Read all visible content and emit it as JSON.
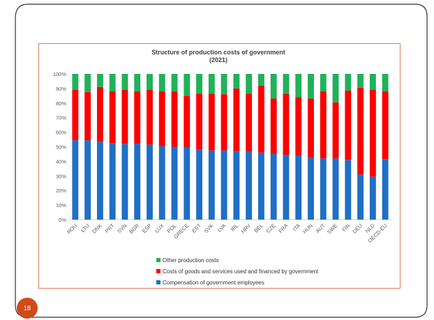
{
  "slide": {
    "page_number": "18"
  },
  "colors": {
    "accent": "#d2491b",
    "chart_border": "#d97f5a"
  },
  "chart_data": {
    "type": "bar",
    "stacked": true,
    "title": "Structure of production costs of government",
    "subtitle": "(2021)",
    "xlabel": "",
    "ylabel": "",
    "ylim": [
      0,
      100
    ],
    "y_ticks": [
      "0%",
      "10%",
      "20%",
      "30%",
      "40%",
      "50%",
      "60%",
      "70%",
      "80%",
      "90%",
      "100%"
    ],
    "grid": false,
    "legend_position": "bottom",
    "categories": [
      "ROU",
      "LTU",
      "DNK",
      "PRT",
      "SVN",
      "BGR",
      "ESP",
      "LUX",
      "POL",
      "GRECE",
      "EST",
      "SVK",
      "LVA",
      "IRL",
      "HRV",
      "BEL",
      "CZE",
      "FRA",
      "ITA",
      "HUN",
      "AUT",
      "SWE",
      "FIN",
      "DEU",
      "NLD",
      "OECD-EU"
    ],
    "series": [
      {
        "name": "Compensation of government employees",
        "color": "#1f6fc5",
        "values": [
          54.5,
          54.5,
          53.5,
          52.5,
          52,
          52,
          51.5,
          50.5,
          50,
          49.5,
          48,
          47.5,
          47.5,
          47,
          46.5,
          46,
          45,
          44.5,
          44,
          42.5,
          42,
          42,
          41,
          31,
          29.5,
          41.5
        ]
      },
      {
        "name": "Costs of goods and services used and financed by government",
        "color": "#ff0000",
        "values": [
          34.5,
          33,
          37.5,
          35.5,
          37,
          36,
          37.5,
          37.5,
          38,
          35.5,
          38.5,
          39,
          38.5,
          43,
          40,
          46,
          38,
          42,
          40,
          40.5,
          46,
          38.5,
          47.5,
          59.5,
          59.5,
          46.5
        ]
      },
      {
        "name": "Other production costs",
        "color": "#21b15a",
        "values": [
          11,
          12.5,
          9,
          12,
          11,
          12,
          11,
          12,
          12,
          15,
          13.5,
          13.5,
          14,
          10,
          13.5,
          8,
          17,
          13.5,
          16,
          17,
          12,
          19.5,
          11.5,
          9.5,
          11,
          12
        ]
      }
    ],
    "legend_order": [
      "Other production costs",
      "Costs of goods and services used and financed by government",
      "Compensation of government employees"
    ]
  }
}
